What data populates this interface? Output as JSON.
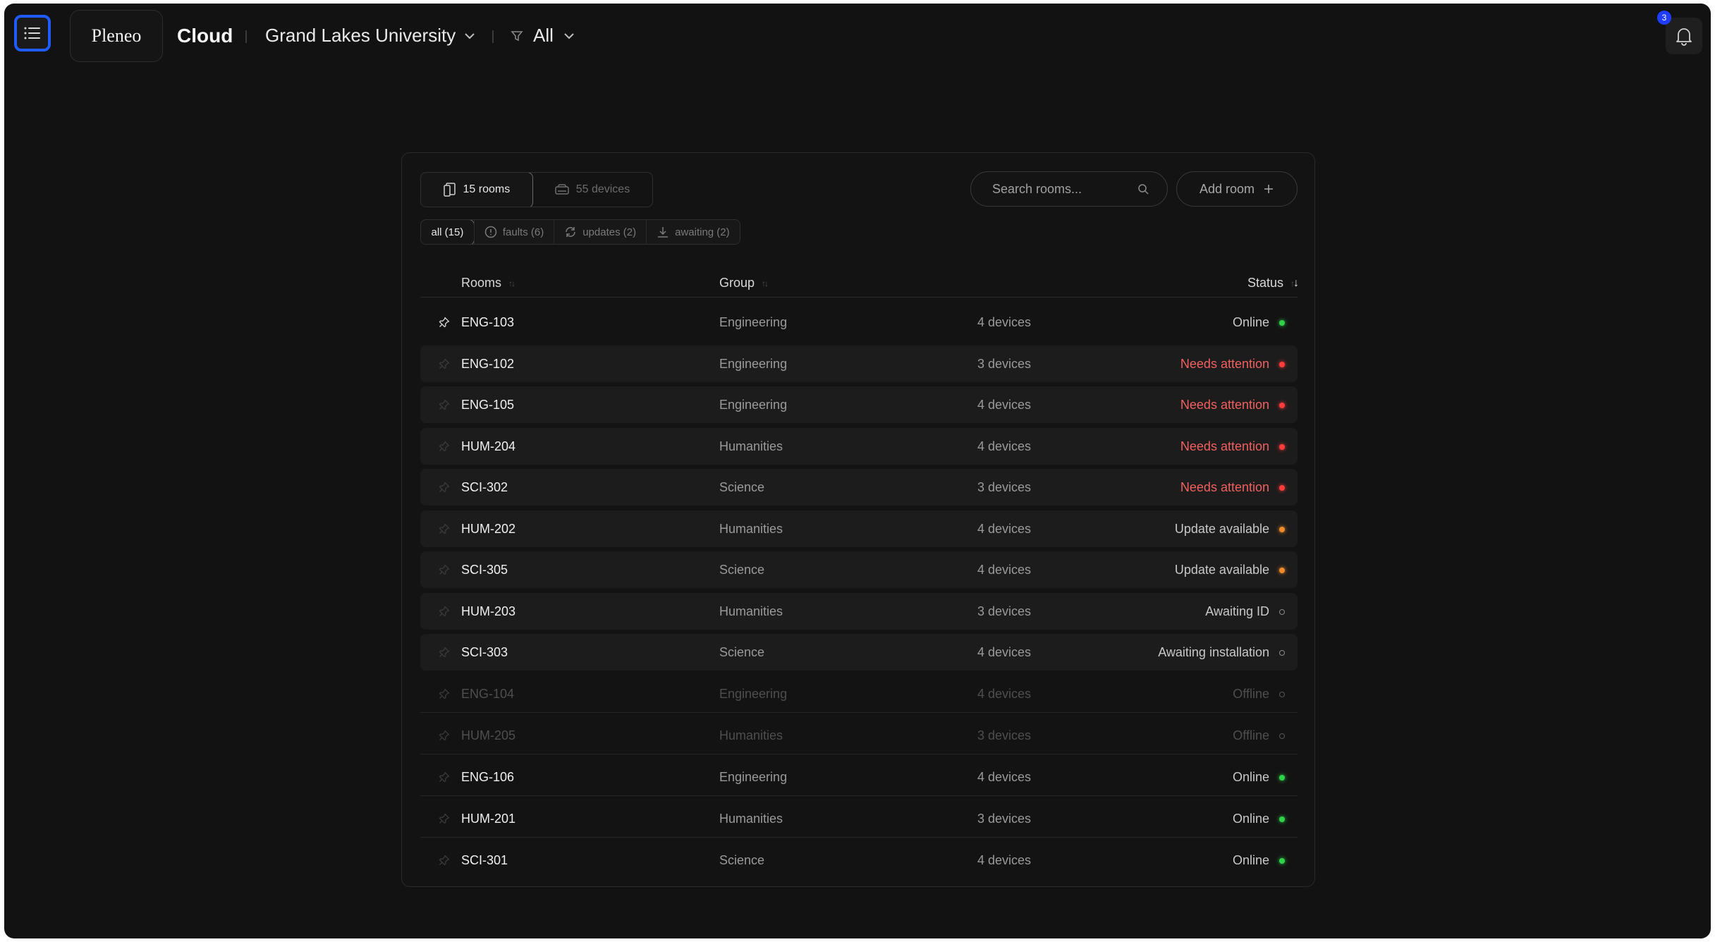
{
  "header": {
    "logo_text": "Pleneo",
    "product": "Cloud",
    "organization": "Grand Lakes University",
    "filter": "All",
    "notification_count": "3"
  },
  "toolbar": {
    "view_tabs": [
      {
        "label": "15 rooms",
        "icon": "rooms-icon",
        "active": true
      },
      {
        "label": "55 devices",
        "icon": "device-icon",
        "active": false
      }
    ],
    "filters": [
      {
        "label": "all (15)",
        "icon": "",
        "active": true
      },
      {
        "label": "faults (6)",
        "icon": "alert-circle-icon",
        "active": false
      },
      {
        "label": "updates (2)",
        "icon": "refresh-icon",
        "active": false
      },
      {
        "label": "awaiting (2)",
        "icon": "download-icon",
        "active": false
      }
    ],
    "search_placeholder": "Search rooms...",
    "add_room_label": "Add room"
  },
  "table": {
    "columns": {
      "rooms": "Rooms",
      "group": "Group",
      "status": "Status"
    },
    "rows": [
      {
        "name": "ENG-103",
        "group": "Engineering",
        "devices": "4 devices",
        "status": "Online",
        "status_color": "#2fd34a",
        "pinned": true
      },
      {
        "name": "ENG-102",
        "group": "Engineering",
        "devices": "3 devices",
        "status": "Needs attention",
        "status_color": "#ff3b3b",
        "pinned": false
      },
      {
        "name": "ENG-105",
        "group": "Engineering",
        "devices": "4 devices",
        "status": "Needs attention",
        "status_color": "#ff3b3b",
        "pinned": false
      },
      {
        "name": "HUM-204",
        "group": "Humanities",
        "devices": "4 devices",
        "status": "Needs attention",
        "status_color": "#ff3b3b",
        "pinned": false
      },
      {
        "name": "SCI-302",
        "group": "Science",
        "devices": "3 devices",
        "status": "Needs attention",
        "status_color": "#ff3b3b",
        "pinned": false
      },
      {
        "name": "HUM-202",
        "group": "Humanities",
        "devices": "4 devices",
        "status": "Update available",
        "status_color": "#f08a2a",
        "pinned": false
      },
      {
        "name": "SCI-305",
        "group": "Science",
        "devices": "4 devices",
        "status": "Update available",
        "status_color": "#f08a2a",
        "pinned": false
      },
      {
        "name": "HUM-203",
        "group": "Humanities",
        "devices": "3 devices",
        "status": "Awaiting ID",
        "status_color": "#8a8a8a",
        "pinned": false
      },
      {
        "name": "SCI-303",
        "group": "Science",
        "devices": "4 devices",
        "status": "Awaiting installation",
        "status_color": "#8a8a8a",
        "pinned": false
      },
      {
        "name": "ENG-104",
        "group": "Engineering",
        "devices": "4 devices",
        "status": "Offline",
        "status_color": "#555555",
        "pinned": false
      },
      {
        "name": "HUM-205",
        "group": "Humanities",
        "devices": "3 devices",
        "status": "Offline",
        "status_color": "#555555",
        "pinned": false
      },
      {
        "name": "ENG-106",
        "group": "Engineering",
        "devices": "4 devices",
        "status": "Online",
        "status_color": "#2fd34a",
        "pinned": false
      },
      {
        "name": "HUM-201",
        "group": "Humanities",
        "devices": "3 devices",
        "status": "Online",
        "status_color": "#2fd34a",
        "pinned": false
      },
      {
        "name": "SCI-301",
        "group": "Science",
        "devices": "4 devices",
        "status": "Online",
        "status_color": "#2fd34a",
        "pinned": false
      }
    ]
  }
}
